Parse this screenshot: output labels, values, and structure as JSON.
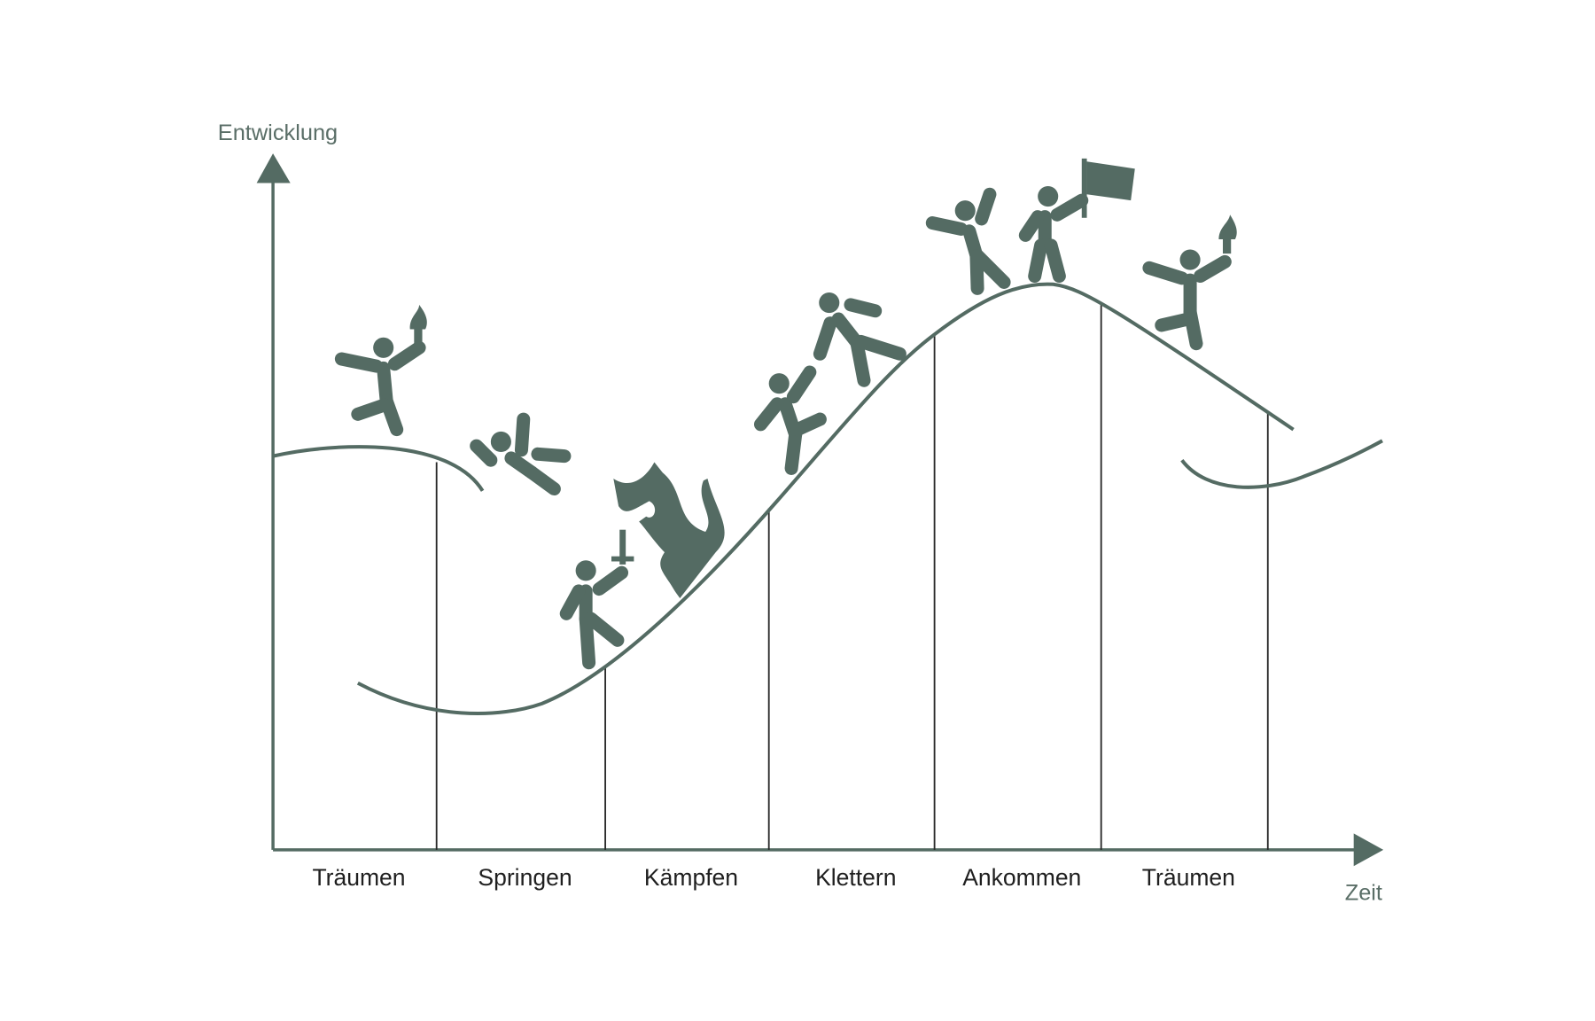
{
  "axes": {
    "y_label": "Entwicklung",
    "x_label": "Zeit"
  },
  "phases": [
    "Träumen",
    "Springen",
    "Kämpfen",
    "Klettern",
    "Ankommen",
    "Träumen"
  ]
}
